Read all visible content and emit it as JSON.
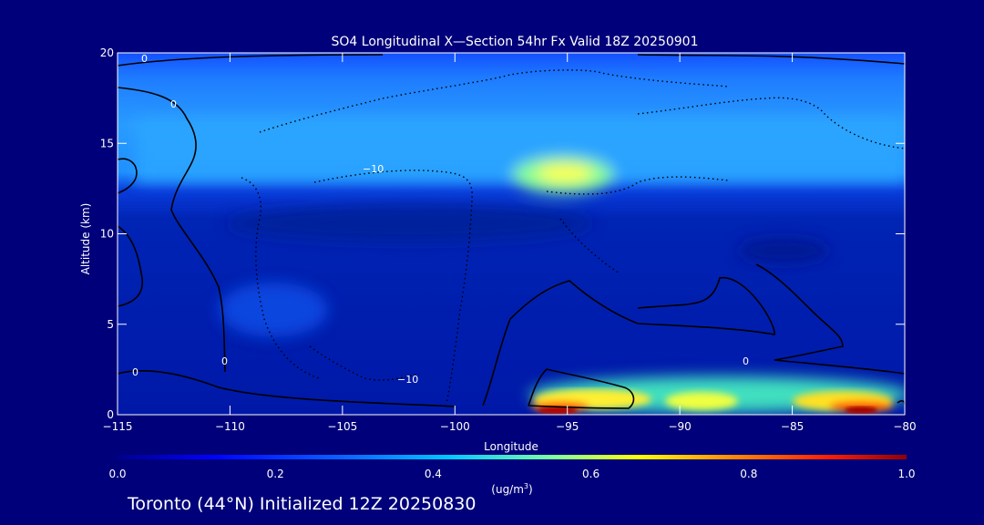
{
  "chart_data": {
    "type": "heatmap",
    "title": "SO4 Longitudinal X—Section 54hr  Fx Valid 18Z 20250901",
    "xlabel": "Longitude",
    "ylabel": "Altitude (km)",
    "xlim": [
      -115,
      -80
    ],
    "ylim": [
      0,
      20
    ],
    "x_ticks": [
      -115,
      -110,
      -105,
      -100,
      -95,
      -90,
      -85,
      -80
    ],
    "x_tick_labels": [
      "−115",
      "−110",
      "−105",
      "−100",
      "−95",
      "−90",
      "−85",
      "−80"
    ],
    "y_ticks": [
      0,
      5,
      10,
      15,
      20
    ],
    "y_tick_labels": [
      "0",
      "5",
      "10",
      "15",
      "20"
    ],
    "colorbar": {
      "min": 0.0,
      "max": 1.0,
      "ticks": [
        0.0,
        0.2,
        0.4,
        0.6,
        0.8,
        1.0
      ],
      "tick_labels": [
        "0.0",
        "0.2",
        "0.4",
        "0.6",
        "0.8",
        "1.0"
      ],
      "units_prefix": "(ug/m",
      "units_sup": "3",
      "units_suffix": ")"
    },
    "contour_labels": [
      "0",
      "0",
      "−10",
      "−10",
      "0",
      "0",
      "0"
    ],
    "field": [
      {
        "alt": 19.5,
        "lon": [
          -115,
          -80
        ],
        "value": 0.2
      },
      {
        "alt": 17.5,
        "lon": [
          -115,
          -80
        ],
        "value": 0.3
      },
      {
        "alt": 15.0,
        "lon": [
          -112,
          -80
        ],
        "value": 0.35
      },
      {
        "alt": 13.5,
        "lon": [
          -96,
          -93
        ],
        "value": 0.55
      },
      {
        "alt": 10.0,
        "lon": [
          -115,
          -80
        ],
        "value": 0.08
      },
      {
        "alt": 5.0,
        "lon": [
          -115,
          -80
        ],
        "value": 0.1
      },
      {
        "alt": 1.0,
        "lon": [
          -97,
          -80
        ],
        "value": 0.5
      },
      {
        "alt": 0.5,
        "lon": [
          -96,
          -94
        ],
        "value": 0.9
      },
      {
        "alt": 0.5,
        "lon": [
          -83,
          -81
        ],
        "value": 0.9
      }
    ]
  },
  "footer": "Toronto (44°N) Initialized 12Z 20250830"
}
